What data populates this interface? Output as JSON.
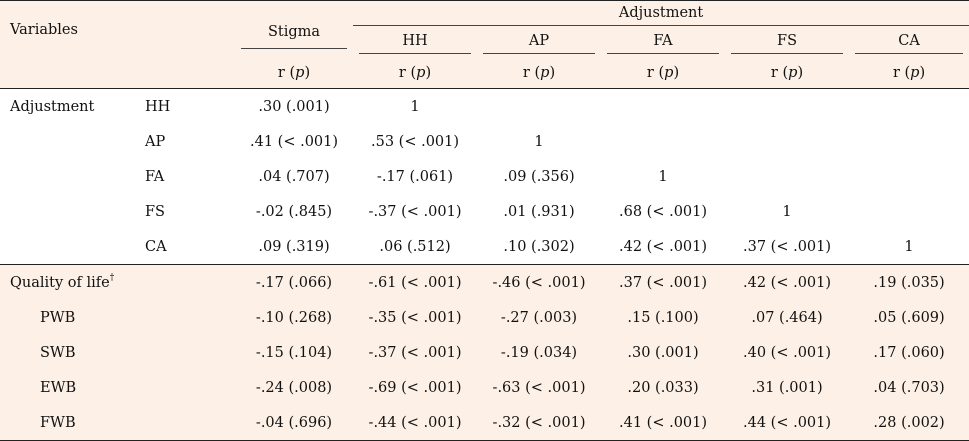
{
  "header": {
    "variables": "Variables",
    "stigma": "Stigma",
    "adjustment": "Adjustment",
    "subcols": [
      "HH",
      "AP",
      "FA",
      "FS",
      "CA"
    ],
    "r": "r",
    "p": "p"
  },
  "adjustment_group": {
    "label": "Adjustment",
    "rows": [
      {
        "name": "HH",
        "cells": [
          ".30 (.001)",
          "1",
          "",
          "",
          "",
          ""
        ]
      },
      {
        "name": "AP",
        "cells": [
          ".41 (< .001)",
          ".53 (< .001)",
          "1",
          "",
          "",
          ""
        ]
      },
      {
        "name": "FA",
        "cells": [
          ".04 (.707)",
          "-.17 (.061)",
          ".09 (.356)",
          "1",
          "",
          ""
        ]
      },
      {
        "name": "FS",
        "cells": [
          "-.02 (.845)",
          "-.37 (< .001)",
          ".01 (.931)",
          ".68 (< .001)",
          "1",
          ""
        ]
      },
      {
        "name": "CA",
        "cells": [
          ".09 (.319)",
          ".06 (.512)",
          ".10 (.302)",
          ".42 (< .001)",
          ".37 (< .001)",
          "1"
        ]
      }
    ]
  },
  "qol_group": {
    "label": "Quality of life",
    "dagger": "†",
    "cells": [
      "-.17 (.066)",
      "-.61 (< .001)",
      "-.46 (< .001)",
      ".37 (< .001)",
      ".42 (< .001)",
      ".19 (.035)"
    ],
    "rows": [
      {
        "name": "PWB",
        "cells": [
          "-.10 (.268)",
          "-.35 (< .001)",
          "-.27 (.003)",
          ".15 (.100)",
          ".07 (.464)",
          ".05 (.609)"
        ]
      },
      {
        "name": "SWB",
        "cells": [
          "-.15 (.104)",
          "-.37 (< .001)",
          "-.19 (.034)",
          ".30 (.001)",
          ".40 (< .001)",
          ".17 (.060)"
        ]
      },
      {
        "name": "EWB",
        "cells": [
          "-.24 (.008)",
          "-.69 (< .001)",
          "-.63 (< .001)",
          ".20 (.033)",
          ".31 (.001)",
          ".04 (.703)"
        ]
      },
      {
        "name": "FWB",
        "cells": [
          "-.04 (.696)",
          "-.44 (< .001)",
          "-.32 (< .001)",
          ".41 (< .001)",
          ".44 (< .001)",
          ".28 (.002)"
        ]
      }
    ]
  }
}
